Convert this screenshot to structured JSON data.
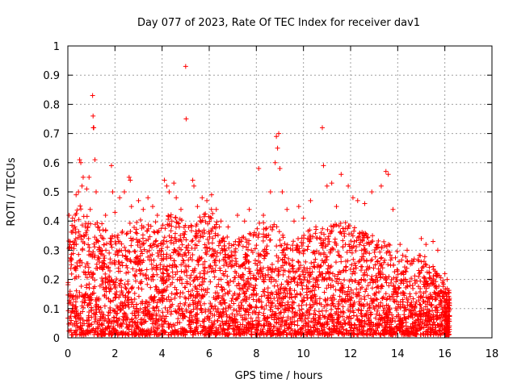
{
  "chart_data": {
    "type": "scatter",
    "title": "Day 077 of 2023, Rate Of TEC Index for receiver dav1",
    "xlabel": "GPS time / hours",
    "ylabel": "ROTI / TECUs",
    "xlim": [
      0,
      18
    ],
    "ylim": [
      0,
      1
    ],
    "x_ticks": [
      "0",
      "2",
      "4",
      "6",
      "8",
      "10",
      "12",
      "14",
      "16",
      "18"
    ],
    "y_ticks": [
      "0",
      "0.1",
      "0.2",
      "0.3",
      "0.4",
      "0.5",
      "0.6",
      "0.7",
      "0.8",
      "0.9",
      "1"
    ],
    "grid": true,
    "marker": "plus",
    "color": "#ff0000",
    "x_range_of_data": [
      0.0,
      16.2
    ],
    "series": [
      {
        "points": [
          [
            0.05,
            0.42
          ],
          [
            0.1,
            0.33
          ],
          [
            0.15,
            0.25
          ],
          [
            0.2,
            0.41
          ],
          [
            0.3,
            0.38
          ],
          [
            0.35,
            0.49
          ],
          [
            0.45,
            0.5
          ],
          [
            0.5,
            0.61
          ],
          [
            0.55,
            0.6
          ],
          [
            0.6,
            0.52
          ],
          [
            0.65,
            0.55
          ],
          [
            0.8,
            0.51
          ],
          [
            0.9,
            0.55
          ],
          [
            0.95,
            0.44
          ],
          [
            1.05,
            0.83
          ],
          [
            1.07,
            0.76
          ],
          [
            1.08,
            0.72
          ],
          [
            1.1,
            0.72
          ],
          [
            1.15,
            0.61
          ],
          [
            1.2,
            0.5
          ],
          [
            1.3,
            0.38
          ],
          [
            1.4,
            0.35
          ],
          [
            1.6,
            0.42
          ],
          [
            1.85,
            0.59
          ],
          [
            1.9,
            0.5
          ],
          [
            2.0,
            0.43
          ],
          [
            2.2,
            0.48
          ],
          [
            2.4,
            0.5
          ],
          [
            2.6,
            0.55
          ],
          [
            2.65,
            0.54
          ],
          [
            2.7,
            0.45
          ],
          [
            3.0,
            0.47
          ],
          [
            3.2,
            0.44
          ],
          [
            3.4,
            0.48
          ],
          [
            3.6,
            0.45
          ],
          [
            3.8,
            0.42
          ],
          [
            4.1,
            0.54
          ],
          [
            4.2,
            0.52
          ],
          [
            4.3,
            0.5
          ],
          [
            4.5,
            0.53
          ],
          [
            4.6,
            0.48
          ],
          [
            4.8,
            0.44
          ],
          [
            5.0,
            0.93
          ],
          [
            5.02,
            0.75
          ],
          [
            5.3,
            0.54
          ],
          [
            5.35,
            0.52
          ],
          [
            5.5,
            0.45
          ],
          [
            5.7,
            0.48
          ],
          [
            5.9,
            0.47
          ],
          [
            6.1,
            0.49
          ],
          [
            6.3,
            0.44
          ],
          [
            6.5,
            0.4
          ],
          [
            6.8,
            0.38
          ],
          [
            7.2,
            0.42
          ],
          [
            7.5,
            0.4
          ],
          [
            7.7,
            0.44
          ],
          [
            8.1,
            0.58
          ],
          [
            8.3,
            0.42
          ],
          [
            8.6,
            0.5
          ],
          [
            8.8,
            0.6
          ],
          [
            8.85,
            0.69
          ],
          [
            8.9,
            0.65
          ],
          [
            8.95,
            0.7
          ],
          [
            9.0,
            0.58
          ],
          [
            9.1,
            0.5
          ],
          [
            9.3,
            0.44
          ],
          [
            9.6,
            0.4
          ],
          [
            9.8,
            0.45
          ],
          [
            10.0,
            0.41
          ],
          [
            10.3,
            0.47
          ],
          [
            10.8,
            0.72
          ],
          [
            10.85,
            0.59
          ],
          [
            11.0,
            0.52
          ],
          [
            11.2,
            0.53
          ],
          [
            11.4,
            0.45
          ],
          [
            11.6,
            0.56
          ],
          [
            11.9,
            0.52
          ],
          [
            12.1,
            0.48
          ],
          [
            12.3,
            0.47
          ],
          [
            12.6,
            0.46
          ],
          [
            12.9,
            0.5
          ],
          [
            13.3,
            0.52
          ],
          [
            13.5,
            0.57
          ],
          [
            13.6,
            0.56
          ],
          [
            13.8,
            0.44
          ],
          [
            14.1,
            0.32
          ],
          [
            14.4,
            0.3
          ],
          [
            14.7,
            0.27
          ],
          [
            15.0,
            0.34
          ],
          [
            15.2,
            0.32
          ],
          [
            15.5,
            0.33
          ],
          [
            15.7,
            0.3
          ],
          [
            16.0,
            0.22
          ],
          [
            16.1,
            0.2
          ]
        ]
      }
    ],
    "dense_band": [
      [
        0.0,
        0.0,
        0.35
      ],
      [
        0.5,
        0.0,
        0.45
      ],
      [
        1.0,
        0.0,
        0.4
      ],
      [
        1.5,
        0.0,
        0.38
      ],
      [
        2.0,
        0.0,
        0.36
      ],
      [
        2.5,
        0.0,
        0.38
      ],
      [
        3.0,
        0.0,
        0.4
      ],
      [
        3.5,
        0.0,
        0.38
      ],
      [
        4.0,
        0.0,
        0.4
      ],
      [
        4.5,
        0.0,
        0.42
      ],
      [
        5.0,
        0.0,
        0.38
      ],
      [
        5.5,
        0.0,
        0.4
      ],
      [
        6.0,
        0.0,
        0.45
      ],
      [
        6.5,
        0.0,
        0.36
      ],
      [
        7.0,
        0.0,
        0.32
      ],
      [
        7.5,
        0.0,
        0.34
      ],
      [
        8.0,
        0.0,
        0.38
      ],
      [
        8.5,
        0.0,
        0.4
      ],
      [
        9.0,
        0.0,
        0.36
      ],
      [
        9.5,
        0.0,
        0.32
      ],
      [
        10.0,
        0.0,
        0.34
      ],
      [
        10.5,
        0.0,
        0.38
      ],
      [
        11.0,
        0.0,
        0.36
      ],
      [
        11.5,
        0.0,
        0.4
      ],
      [
        12.0,
        0.0,
        0.38
      ],
      [
        12.5,
        0.0,
        0.36
      ],
      [
        13.0,
        0.0,
        0.34
      ],
      [
        13.5,
        0.0,
        0.32
      ],
      [
        14.0,
        0.0,
        0.3
      ],
      [
        14.5,
        0.0,
        0.26
      ],
      [
        15.0,
        0.0,
        0.28
      ],
      [
        15.5,
        0.0,
        0.24
      ],
      [
        16.0,
        0.0,
        0.18
      ],
      [
        16.2,
        0.0,
        0.15
      ]
    ]
  }
}
